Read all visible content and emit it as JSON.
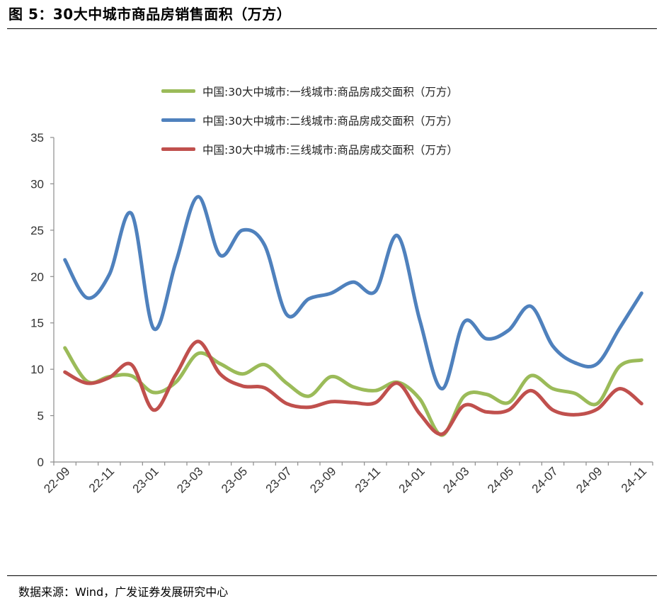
{
  "figure": {
    "title": "图 5：30大中城市商品房销售面积（万方）",
    "source": "数据来源：Wind，广发证券发展研究中心"
  },
  "chart_data": {
    "type": "line",
    "x": [
      "22-09",
      "22-10",
      "22-11",
      "22-12",
      "23-01",
      "23-02",
      "23-03",
      "23-04",
      "23-05",
      "23-06",
      "23-07",
      "23-08",
      "23-09",
      "23-10",
      "23-11",
      "23-12",
      "24-01",
      "24-02",
      "24-03",
      "24-04",
      "24-05",
      "24-06",
      "24-07",
      "24-08",
      "24-09",
      "24-10",
      "24-11"
    ],
    "xticks": [
      "22-09",
      "22-11",
      "23-01",
      "23-03",
      "23-05",
      "23-07",
      "23-09",
      "23-11",
      "24-01",
      "24-03",
      "24-05",
      "24-07",
      "24-09",
      "24-11"
    ],
    "ylim": [
      0,
      35
    ],
    "yticks": [
      0,
      5,
      10,
      15,
      20,
      25,
      30,
      35
    ],
    "grid": false,
    "legend_position": "top",
    "series": [
      {
        "name": "中国:30大中城市:一线城市:商品房成交面积（万方）",
        "color": "#9BBB59",
        "values": [
          12.3,
          8.7,
          9.2,
          9.3,
          7.5,
          8.6,
          11.7,
          10.6,
          9.5,
          10.5,
          8.5,
          7.1,
          9.2,
          8.1,
          7.7,
          8.6,
          6.8,
          2.9,
          7.1,
          7.3,
          6.4,
          9.3,
          7.9,
          7.4,
          6.3,
          10.3,
          11.0
        ]
      },
      {
        "name": "中国:30大中城市:二线城市:商品房成交面积（万方）",
        "color": "#4F81BD",
        "values": [
          21.8,
          17.7,
          20.2,
          26.8,
          14.4,
          21.5,
          28.6,
          22.3,
          25.0,
          23.4,
          15.9,
          17.6,
          18.2,
          19.4,
          18.4,
          24.4,
          15.3,
          7.9,
          15.1,
          13.3,
          14.2,
          16.8,
          12.5,
          10.7,
          10.6,
          14.4,
          18.2
        ]
      },
      {
        "name": "中国:30大中城市:三线城市:商品房成交面积（万方）",
        "color": "#C0504D",
        "values": [
          9.7,
          8.5,
          9.1,
          10.5,
          5.6,
          9.4,
          13.0,
          9.5,
          8.2,
          8.0,
          6.3,
          5.9,
          6.5,
          6.4,
          6.4,
          8.5,
          5.2,
          3.0,
          6.1,
          5.4,
          5.6,
          7.7,
          5.6,
          5.1,
          5.7,
          7.9,
          6.3
        ]
      }
    ]
  }
}
